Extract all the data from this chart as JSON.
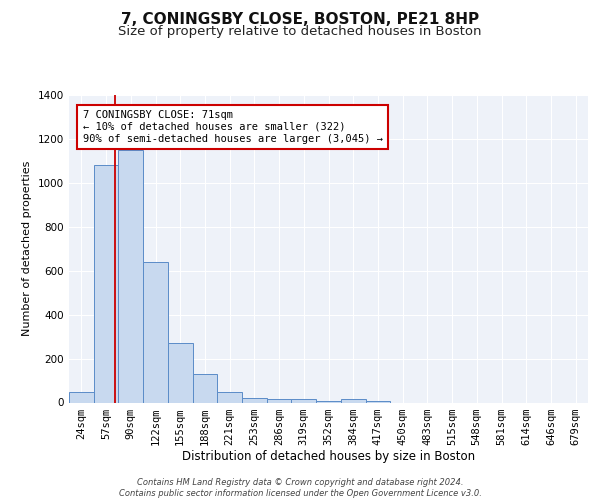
{
  "title": "7, CONINGSBY CLOSE, BOSTON, PE21 8HP",
  "subtitle": "Size of property relative to detached houses in Boston",
  "xlabel": "Distribution of detached houses by size in Boston",
  "ylabel": "Number of detached properties",
  "categories": [
    "24sqm",
    "57sqm",
    "90sqm",
    "122sqm",
    "155sqm",
    "188sqm",
    "221sqm",
    "253sqm",
    "286sqm",
    "319sqm",
    "352sqm",
    "384sqm",
    "417sqm",
    "450sqm",
    "483sqm",
    "515sqm",
    "548sqm",
    "581sqm",
    "614sqm",
    "646sqm",
    "679sqm"
  ],
  "values": [
    50,
    1080,
    1150,
    640,
    270,
    130,
    50,
    20,
    18,
    18,
    5,
    18,
    5,
    0,
    0,
    0,
    0,
    0,
    0,
    0,
    0
  ],
  "bar_color": "#c8d9ef",
  "bar_edge_color": "#5b8cc8",
  "vline_x": 1.35,
  "vline_color": "#cc0000",
  "annotation_text": "7 CONINGSBY CLOSE: 71sqm\n← 10% of detached houses are smaller (322)\n90% of semi-detached houses are larger (3,045) →",
  "annotation_box_color": "#cc0000",
  "ylim": [
    0,
    1400
  ],
  "yticks": [
    0,
    200,
    400,
    600,
    800,
    1000,
    1200,
    1400
  ],
  "background_color": "#eef2f9",
  "footer_text": "Contains HM Land Registry data © Crown copyright and database right 2024.\nContains public sector information licensed under the Open Government Licence v3.0.",
  "title_fontsize": 11,
  "subtitle_fontsize": 9.5,
  "xlabel_fontsize": 8.5,
  "ylabel_fontsize": 8,
  "tick_fontsize": 7.5,
  "annotation_fontsize": 7.5
}
